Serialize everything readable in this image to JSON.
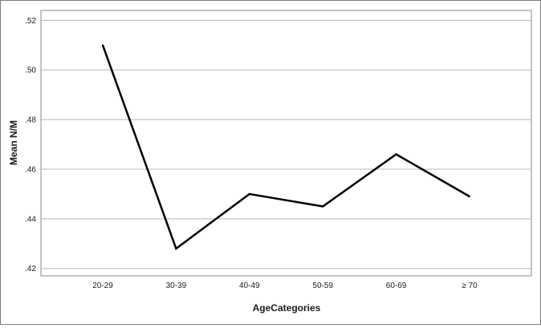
{
  "chart_data": {
    "type": "line",
    "title": "",
    "xlabel": "AgeCategories",
    "ylabel": "Mean N/M",
    "categories": [
      "20-29",
      "30-39",
      "40-49",
      "50-59",
      "60-69",
      "≥ 70"
    ],
    "series": [
      {
        "values": [
          0.51,
          0.428,
          0.45,
          0.445,
          0.466,
          0.449
        ]
      }
    ],
    "ylim": [
      0.417,
      0.524
    ],
    "yticks": [
      0.42,
      0.44,
      0.46,
      0.48,
      0.5,
      0.52
    ],
    "ytick_labels": [
      ".42",
      ".44",
      ".46",
      ".48",
      ".50",
      ".52"
    ],
    "grid": "horizontal",
    "line_color": "#000000",
    "grid_color": "#b5b5b5"
  }
}
